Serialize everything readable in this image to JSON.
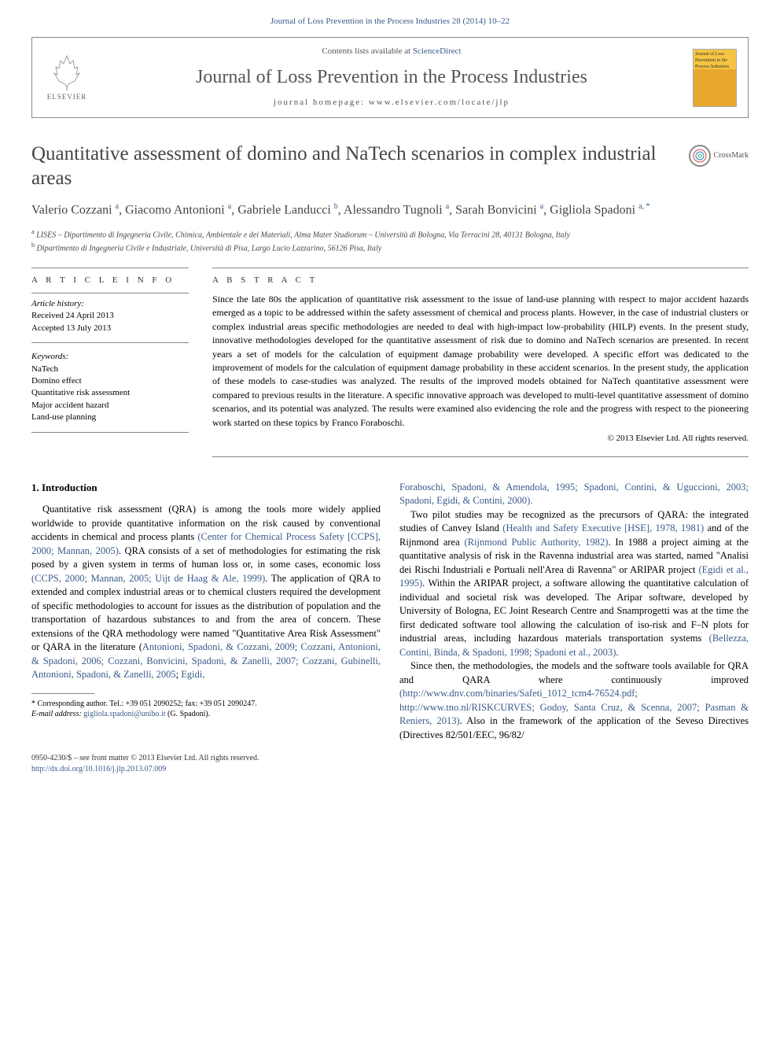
{
  "citation_header": "Journal of Loss Prevention in the Process Industries 28 (2014) 10–22",
  "header": {
    "elsevier_label": "ELSEVIER",
    "contents_line": "Contents lists available at ",
    "sciencedirect": "ScienceDirect",
    "journal_name": "Journal of Loss Prevention in the Process Industries",
    "homepage_label": "journal homepage: ",
    "homepage_url": "www.elsevier.com/locate/jlp",
    "cover_text": "Journal of Loss Prevention in the Process Industries"
  },
  "crossmark_label": "CrossMark",
  "article": {
    "title": "Quantitative assessment of domino and NaTech scenarios in complex industrial areas",
    "authors_html": "Valerio Cozzani <sup>a</sup>, Giacomo Antonioni <sup>a</sup>, Gabriele Landucci <sup>b</sup>, Alessandro Tugnoli <sup>a</sup>, Sarah Bonvicini <sup>a</sup>, Gigliola Spadoni <sup>a, *</sup>",
    "affiliations": [
      "a LISES – Dipartimento di Ingegneria Civile, Chimica, Ambientale e dei Materiali, Alma Mater Studiorum – Università di Bologna, Via Terracini 28, 40131 Bologna, Italy",
      "b Dipartimento di Ingegneria Civile e Industriale, Università di Pisa, Largo Lucio Lazzarino, 56126 Pisa, Italy"
    ]
  },
  "article_info": {
    "heading": "A R T I C L E  I N F O",
    "history_label": "Article history:",
    "received": "Received 24 April 2013",
    "accepted": "Accepted 13 July 2013",
    "keywords_label": "Keywords:",
    "keywords": [
      "NaTech",
      "Domino effect",
      "Quantitative risk assessment",
      "Major accident hazard",
      "Land-use planning"
    ]
  },
  "abstract": {
    "heading": "A B S T R A C T",
    "text": "Since the late 80s the application of quantitative risk assessment to the issue of land-use planning with respect to major accident hazards emerged as a topic to be addressed within the safety assessment of chemical and process plants. However, in the case of industrial clusters or complex industrial areas specific methodologies are needed to deal with high-impact low-probability (HILP) events. In the present study, innovative methodologies developed for the quantitative assessment of risk due to domino and NaTech scenarios are presented. In recent years a set of models for the calculation of equipment damage probability were developed. A specific effort was dedicated to the improvement of models for the calculation of equipment damage probability in these accident scenarios. In the present study, the application of these models to case-studies was analyzed. The results of the improved models obtained for NaTech quantitative assessment were compared to previous results in the literature. A specific innovative approach was developed to multi-level quantitative assessment of domino scenarios, and its potential was analyzed. The results were examined also evidencing the role and the progress with respect to the pioneering work started on these topics by Franco Foraboschi.",
    "copyright": "© 2013 Elsevier Ltd. All rights reserved."
  },
  "body": {
    "section1_heading": "1. Introduction",
    "col1_p1": "Quantitative risk assessment (QRA) is among the tools more widely applied worldwide to provide quantitative information on the risk caused by conventional accidents in chemical and process plants (Center for Chemical Process Safety [CCPS], 2000; Mannan, 2005). QRA consists of a set of methodologies for estimating the risk posed by a given system in terms of human loss or, in some cases, economic loss (CCPS, 2000; Mannan, 2005; Uijt de Haag & Ale, 1999). The application of QRA to extended and complex industrial areas or to chemical clusters required the development of specific methodologies to account for issues as the distribution of population and the transportation of hazardous substances to and from the area of concern. These extensions of the QRA methodology were named \"Quantitative Area Risk Assessment\" or QARA in the literature (Antonioni, Spadoni, & Cozzani, 2009; Cozzani, Antonioni, & Spadoni, 2006; Cozzani, Bonvicini, Spadoni, & Zanelli, 2007; Cozzani, Gubinelli, Antonioni, Spadoni, & Zanelli, 2005; Egidi,",
    "col2_p0": "Foraboschi, Spadoni, & Amendola, 1995; Spadoni, Contini, & Uguccioni, 2003; Spadoni, Egidi, & Contini, 2000).",
    "col2_p1": "Two pilot studies may be recognized as the precursors of QARA: the integrated studies of Canvey Island (Health and Safety Executive [HSE], 1978, 1981) and of the Rijnmond area (Rijnmond Public Authority, 1982). In 1988 a project aiming at the quantitative analysis of risk in the Ravenna industrial area was started, named \"Analisi dei Rischi Industriali e Portuali nell'Area di Ravenna\" or ARIPAR project (Egidi et al., 1995). Within the ARIPAR project, a software allowing the quantitative calculation of individual and societal risk was developed. The Aripar software, developed by University of Bologna, EC Joint Research Centre and Snamprogetti was at the time the first dedicated software tool allowing the calculation of iso-risk and F–N plots for industrial areas, including hazardous materials transportation systems (Bellezza, Contini, Binda, & Spadoni, 1998; Spadoni et al., 2003).",
    "col2_p2": "Since then, the methodologies, the models and the software tools available for QRA and QARA where continuously improved (http://www.dnv.com/binaries/Safeti_1012_tcm4-76524.pdf; http://www.tno.nl/RISKCURVES; Godoy, Santa Cruz, & Scenna, 2007; Pasman & Reniers, 2013). Also in the framework of the application of the Seveso Directives (Directives 82/501/EEC, 96/82/"
  },
  "footnotes": {
    "corresponding": "* Corresponding author. Tel.: +39 051 2090252; fax: +39 051 2090247.",
    "email_label": "E-mail address: ",
    "email": "gigliola.spadoni@unibo.it",
    "email_name": " (G. Spadoni)."
  },
  "footer": {
    "issn_line": "0950-4230/$ – see front matter © 2013 Elsevier Ltd. All rights reserved.",
    "doi": "http://dx.doi.org/10.1016/j.jlp.2013.07.009"
  },
  "colors": {
    "link": "#3a5a8a",
    "text": "#000000",
    "muted": "#555555",
    "border": "#888888"
  }
}
